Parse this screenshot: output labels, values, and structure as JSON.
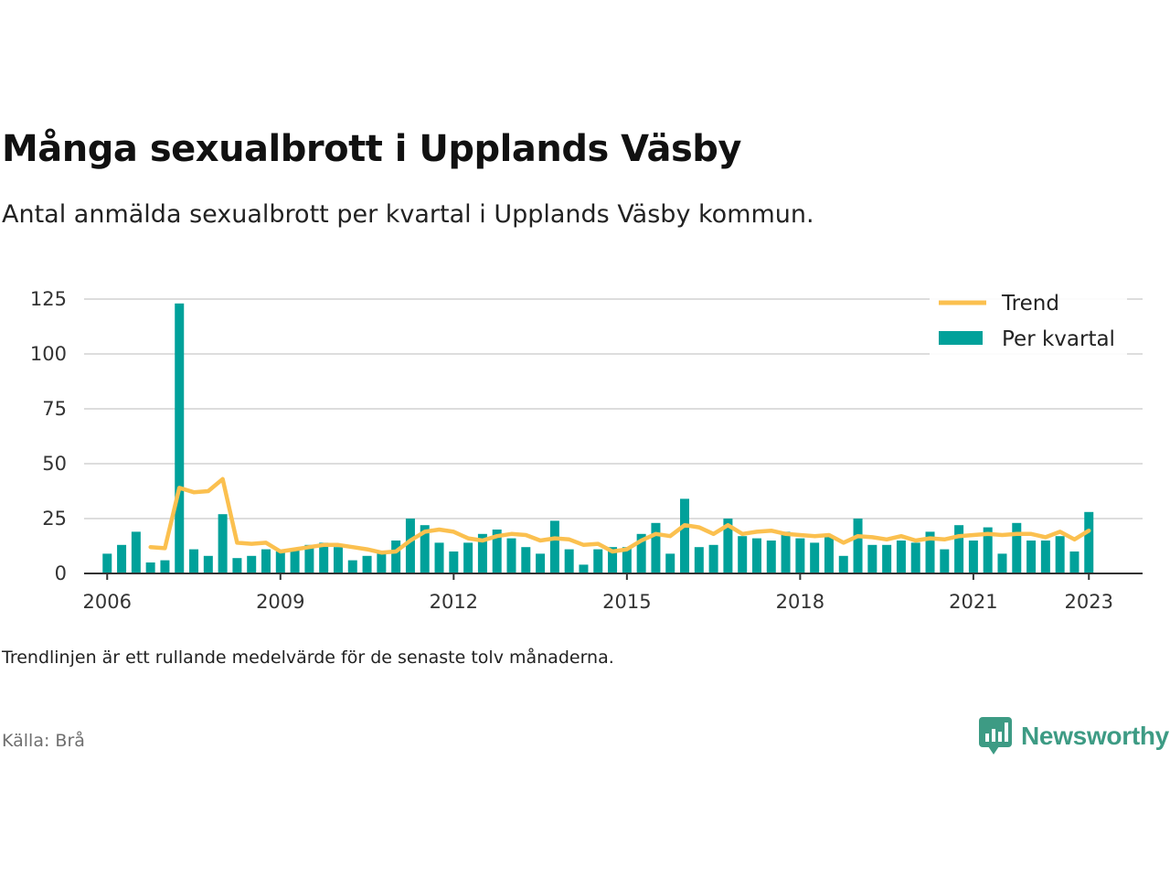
{
  "title": "Många sexualbrott i Upplands Väsby",
  "subtitle": "Antal anmälda sexualbrott per kvartal i Upplands Väsby kommun.",
  "note": "Trendlinjen är ett rullande medelvärde för de senaste tolv månaderna.",
  "source": "Källa: Brå",
  "brand": {
    "name": "Newsworthy",
    "icon": "newsworthy-chart-bubble-icon"
  },
  "colors": {
    "bar": "#00a19a",
    "trend": "#fbc04f",
    "grid": "#dddddd",
    "axis": "#333333",
    "brand": "#3d9b84"
  },
  "chart_data": {
    "type": "bar",
    "ylim": [
      0,
      130
    ],
    "yticks": [
      0,
      25,
      50,
      75,
      100,
      125
    ],
    "xlim": [
      2005.6,
      2023.93
    ],
    "xticks": [
      "2006",
      "2009",
      "2012",
      "2015",
      "2018",
      "2021",
      "2023"
    ],
    "grid": true,
    "legend_position": "top-right",
    "x": [
      "2006 Q1",
      "2006 Q2",
      "2006 Q3",
      "2006 Q4",
      "2007 Q1",
      "2007 Q2",
      "2007 Q3",
      "2007 Q4",
      "2008 Q1",
      "2008 Q2",
      "2008 Q3",
      "2008 Q4",
      "2009 Q1",
      "2009 Q2",
      "2009 Q3",
      "2009 Q4",
      "2010 Q1",
      "2010 Q2",
      "2010 Q3",
      "2010 Q4",
      "2011 Q1",
      "2011 Q2",
      "2011 Q3",
      "2011 Q4",
      "2012 Q1",
      "2012 Q2",
      "2012 Q3",
      "2012 Q4",
      "2013 Q1",
      "2013 Q2",
      "2013 Q3",
      "2013 Q4",
      "2014 Q1",
      "2014 Q2",
      "2014 Q3",
      "2014 Q4",
      "2015 Q1",
      "2015 Q2",
      "2015 Q3",
      "2015 Q4",
      "2016 Q1",
      "2016 Q2",
      "2016 Q3",
      "2016 Q4",
      "2017 Q1",
      "2017 Q2",
      "2017 Q3",
      "2017 Q4",
      "2018 Q1",
      "2018 Q2",
      "2018 Q3",
      "2018 Q4",
      "2019 Q1",
      "2019 Q2",
      "2019 Q3",
      "2019 Q4",
      "2020 Q1",
      "2020 Q2",
      "2020 Q3",
      "2020 Q4",
      "2021 Q1",
      "2021 Q2",
      "2021 Q3",
      "2021 Q4",
      "2022 Q1",
      "2022 Q2",
      "2022 Q3",
      "2022 Q4",
      "2023 Q1"
    ],
    "series": [
      {
        "name": "Per kvartal",
        "type": "bar",
        "values": [
          9,
          13,
          19,
          5,
          6,
          123,
          11,
          8,
          27,
          7,
          8,
          11,
          10,
          11,
          13,
          14,
          12,
          6,
          8,
          9,
          15,
          25,
          22,
          14,
          10,
          14,
          18,
          20,
          16,
          12,
          9,
          24,
          11,
          4,
          11,
          12,
          12,
          18,
          23,
          9,
          34,
          12,
          13,
          25,
          17,
          16,
          15,
          19,
          16,
          14,
          17,
          8,
          25,
          13,
          13,
          15,
          14,
          19,
          11,
          22,
          15,
          21,
          9,
          23,
          15,
          15,
          17,
          10,
          28
        ]
      },
      {
        "name": "Trend",
        "type": "line",
        "values": [
          null,
          null,
          null,
          12,
          11.5,
          39,
          37,
          37.5,
          43,
          14,
          13.5,
          14,
          10,
          11,
          12,
          13,
          13,
          12,
          11,
          9.5,
          10,
          15,
          19,
          20,
          19,
          16,
          15,
          17,
          18,
          17.5,
          15,
          16,
          15.5,
          13,
          13.5,
          10,
          11,
          15,
          18,
          17,
          22,
          21,
          18,
          22,
          18,
          19,
          19.5,
          18,
          17.5,
          17,
          17.5,
          14,
          17,
          16.5,
          15.5,
          17,
          15,
          16,
          15.5,
          17,
          17.5,
          18,
          17.5,
          18,
          18,
          16.5,
          19,
          15.5,
          19.5
        ]
      }
    ]
  }
}
